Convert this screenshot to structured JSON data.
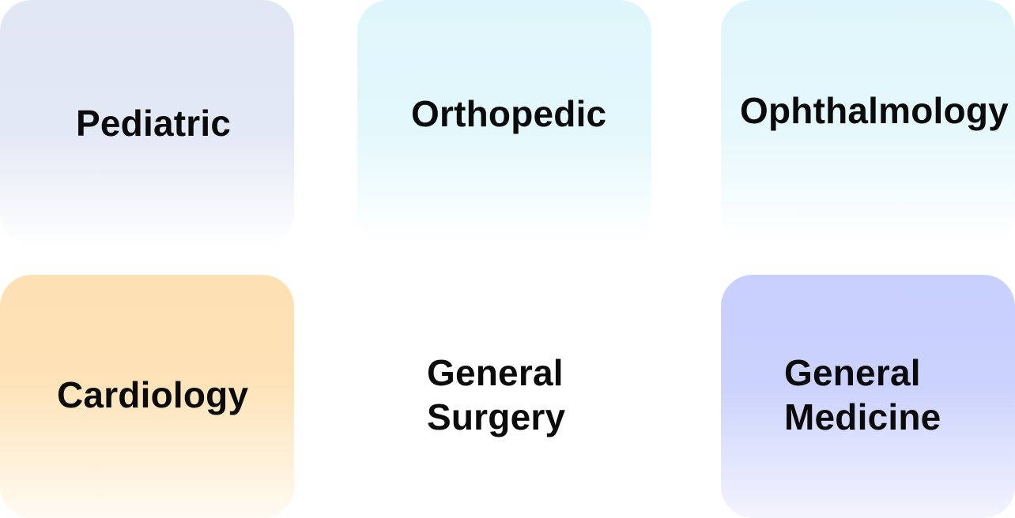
{
  "specialties": [
    {
      "label": "Pediatric"
    },
    {
      "label": "Orthopedic"
    },
    {
      "label": "Ophthalmology"
    },
    {
      "label": "Cardiology"
    },
    {
      "label": "General Surgery"
    },
    {
      "label": "General Medicine"
    }
  ],
  "colors": {
    "pediatric": "#e1e6f3",
    "orthopedic": "#def5fb",
    "ophthalmology": "#def5fb",
    "cardiology": "#fde0b3",
    "general_surgery": "#ffffff",
    "general_medicine": "#c8cffd",
    "text": "#0b0b0b"
  }
}
